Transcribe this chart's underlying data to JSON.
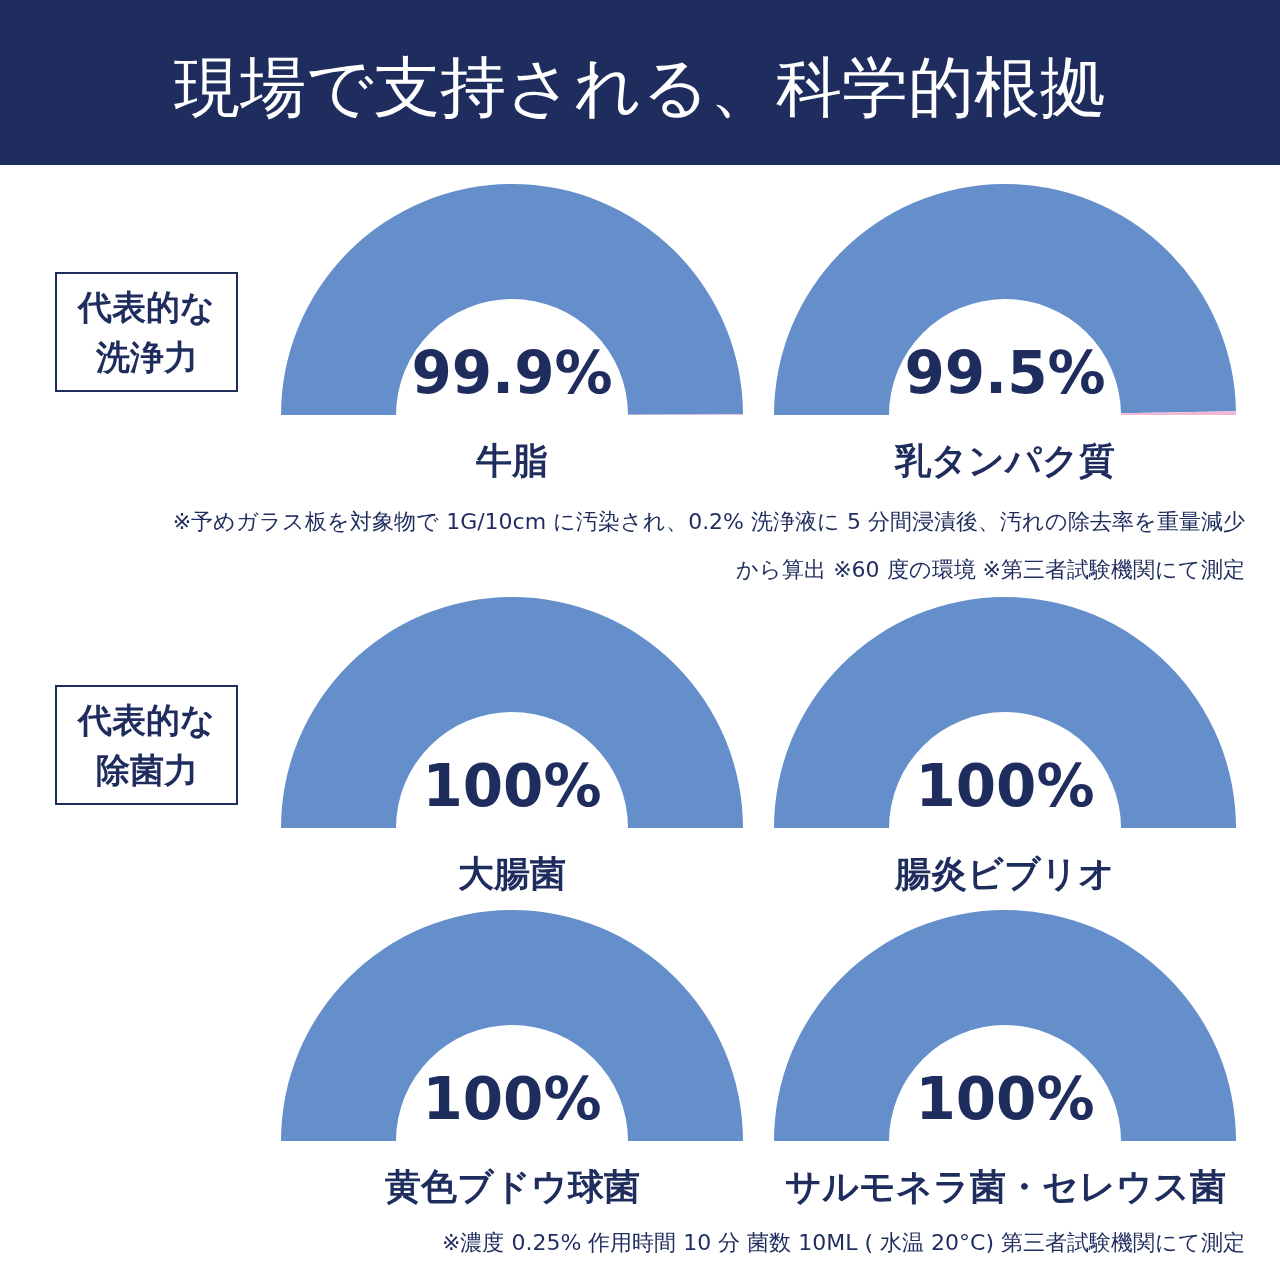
{
  "chart_data": [
    {
      "type": "other",
      "title": "現場で支持される、科学的根拠"
    },
    {
      "type": "donut",
      "xlabel": "牛脂",
      "categories": [
        null,
        null
      ],
      "values": [
        99.9,
        0.1
      ],
      "colors": [
        "#658fca",
        "#f2b8d6"
      ],
      "value_labels": [
        "99.9%",
        null
      ],
      "annotations": [
        "代表的な洗浄力"
      ]
    },
    {
      "type": "donut",
      "xlabel": "乳タンパク質",
      "categories": [
        null,
        null
      ],
      "values": [
        99.5,
        0.5
      ],
      "colors": [
        "#658fca",
        "#f2b8d6"
      ],
      "value_labels": [
        "99.5%",
        null
      ],
      "annotations": [
        "※予めガラス板を対象物で 1G/10cm に汚染され、0.2% 洗浄液に 5 分間浸漬後、汚れの除去率を重量減少から算出 ※60 度の環境 ※第三者試験機関にて測定"
      ]
    },
    {
      "type": "pie",
      "xlabel": "大腸菌",
      "categories": [
        null
      ],
      "values": [
        100
      ],
      "colors": [
        "#658fca"
      ],
      "value_labels": [
        "100%"
      ],
      "annotations": [
        "代表的な除菌力"
      ]
    },
    {
      "type": "pie",
      "xlabel": "腸炎ビブリオ",
      "categories": [
        null
      ],
      "values": [
        100
      ],
      "colors": [
        "#658fca"
      ],
      "value_labels": [
        "100%"
      ]
    },
    {
      "type": "pie",
      "xlabel": "黄色ブドウ球菌",
      "categories": [
        null
      ],
      "values": [
        100
      ],
      "colors": [
        "#658fca"
      ],
      "value_labels": [
        "100%"
      ]
    },
    {
      "type": "pie",
      "xlabel": "サルモネラ菌・セレウス菌",
      "categories": [
        null
      ],
      "values": [
        100
      ],
      "colors": [
        "#658fca"
      ],
      "value_labels": [
        "100%"
      ],
      "annotations": [
        "※濃度 0.25% 作用時間 10 分 菌数 10ML ( 水温 20°C) 第三者試験機関にて測定"
      ]
    }
  ]
}
